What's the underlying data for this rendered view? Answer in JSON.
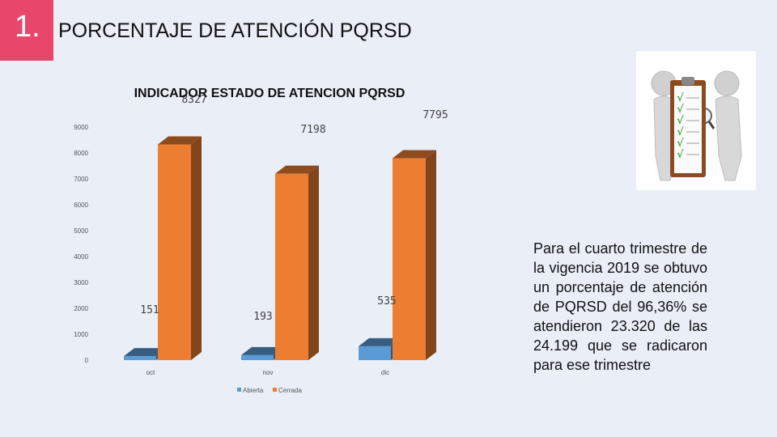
{
  "header": {
    "number": "1.",
    "title": "PORCENTAJE DE ATENCIÓN PQRSD"
  },
  "chart_data": {
    "type": "bar",
    "title": "INDICADOR ESTADO DE ATENCION PQRSD",
    "categories": [
      "oct",
      "nov",
      "dic"
    ],
    "series": [
      {
        "name": "Abierta",
        "values": [
          151,
          193,
          535
        ],
        "labels": [
          "151",
          "193",
          "535"
        ],
        "color": "#5b9bd5"
      },
      {
        "name": "Cerrada",
        "values": [
          8327,
          7198,
          7795
        ],
        "labels": [
          "8327",
          "7198",
          "7795"
        ],
        "color": "#ed7d31"
      }
    ],
    "yticks": [
      "0",
      "1000",
      "2000",
      "3000",
      "4000",
      "5000",
      "6000",
      "7000",
      "8000",
      "9000"
    ],
    "ylim": [
      0,
      9000
    ],
    "legend": "bottom",
    "xlabel": "",
    "ylabel": ""
  },
  "body_text": "Para el cuarto trimestre de la vigencia 2019 se obtuvo un porcentaje de atención de PQRSD del 96,36% se atendieron 23.320 de las 24.199 que se radicaron para ese trimestre",
  "clipart": {
    "icon": "clipboard-checklist-icon",
    "checkmark": "√"
  }
}
